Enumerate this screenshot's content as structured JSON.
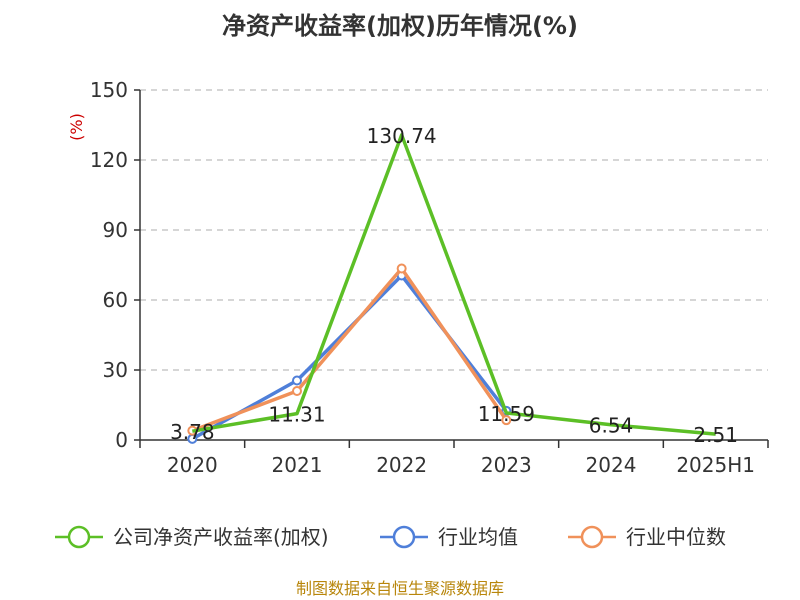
{
  "chart_data": {
    "type": "line",
    "title": "净资产收益率(加权)历年情况(%)",
    "unit_label": "(%)",
    "categories": [
      "2020",
      "2021",
      "2022",
      "2023",
      "2024",
      "2025H1"
    ],
    "ylim": [
      0,
      150
    ],
    "yticks": [
      0,
      30,
      60,
      90,
      120,
      150
    ],
    "grid": true,
    "legend_position": "bottom",
    "series": [
      {
        "name": "公司净资产收益率(加权)",
        "color": "#5cbf26",
        "values": [
          3.78,
          11.31,
          130.74,
          11.59,
          6.54,
          2.51
        ],
        "labels": [
          "3.78",
          "11.31",
          "130.74",
          "11.59",
          "6.54",
          "2.51"
        ],
        "show_markers": false
      },
      {
        "name": "行业均值",
        "color": "#4f7fd9",
        "values": [
          0.5,
          25.5,
          70.5,
          12.5,
          null,
          null
        ],
        "show_markers": true
      },
      {
        "name": "行业中位数",
        "color": "#f0915a",
        "values": [
          4.0,
          21.0,
          73.5,
          8.5,
          null,
          null
        ],
        "show_markers": true
      }
    ]
  },
  "source": "制图数据来自恒生聚源数据库"
}
